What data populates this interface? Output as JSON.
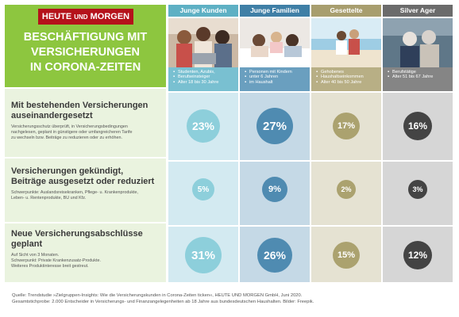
{
  "header": {
    "logo_main": "HEUTE",
    "logo_und": "UND",
    "logo_end": "MORGEN",
    "title_line1": "BESCHÄFTIGUNG MIT",
    "title_line2": "VERSICHERUNGEN",
    "title_line3": "IN CORONA-ZEITEN"
  },
  "rows": [
    {
      "title_line1": "Mit bestehenden Versicherungen",
      "title_line2": "auseinandergesetzt",
      "desc_line1": "Versicherungsschutz überprüft, in Versicherungsbedingungen",
      "desc_line2": "nachgelesen, geplant in günstigere oder umfangreicheren Tarife",
      "desc_line3": "zu wechseln bzw. Beiträge zu reduzieren oder zu erhöhen."
    },
    {
      "title_line1": "Versicherungen gekündigt,",
      "title_line2": "Beiträge ausgesetzt oder reduziert",
      "desc_line1": "Schwerpunkte: Auslandsreisekranken, Pflege- u. Krankenprodukte,",
      "desc_line2": "Leben- u. Rentenprodukte, BU und Kfz."
    },
    {
      "title_line1": "Neue Versicherungsabschlüsse",
      "title_line2": "geplant",
      "desc_line1": "Auf Sicht von 3 Monaten.",
      "desc_line2": "Schwerpunkt: Private Krankenzusatz-Produkte.",
      "desc_line3": "Weiteres Produktinteresse breit gestreut."
    }
  ],
  "groups": [
    {
      "name": "Junge Kunden",
      "head_color": "#5eb0c4",
      "info_color": "#79c0d1",
      "body_color": "#d3eaf1",
      "circle_color": "#8dcfdb",
      "info": [
        "Studenten, Azubis,",
        "Berufseinsteiger",
        "Alter 18 bis 30 Jahre"
      ],
      "values": [
        "23%",
        "5%",
        "31%"
      ]
    },
    {
      "name": "Junge Familien",
      "head_color": "#3f7fa6",
      "info_color": "#6a9fbf",
      "body_color": "#c5d9e6",
      "circle_color": "#4f8bb1",
      "info": [
        "Personen mit Kindern",
        "unter 6 Jahren",
        "im Haushalt"
      ],
      "values": [
        "27%",
        "9%",
        "26%"
      ]
    },
    {
      "name": "Gesettelte",
      "head_color": "#a89e6e",
      "info_color": "#b8af85",
      "body_color": "#e5e2d2",
      "circle_color": "#aba26f",
      "info": [
        "Gehobenes",
        "Haushaltseinkommen",
        "Alter 40 bis 50 Jahre"
      ],
      "values": [
        "17%",
        "2%",
        "15%"
      ]
    },
    {
      "name": "Silver Ager",
      "head_color": "#6b6b6b",
      "info_color": "#858585",
      "body_color": "#d6d6d6",
      "circle_color": "#444444",
      "info": [
        "Berufstätige",
        "Alter 51 bis 67 Jahre"
      ],
      "values": [
        "16%",
        "3%",
        "12%"
      ]
    }
  ],
  "photos": [
    "photo-young-people-laptop",
    "photo-family-on-bed",
    "photo-couple-beach",
    "photo-senior-couple"
  ],
  "source": {
    "line1": "Quelle: Trendstudie »Zielgruppen-Insights: Wie die Versicherungskunden in Corona-Zeiten ticken«, HEUTE UND MORGEN GmbH, Juni 2020.",
    "line2": "Gesamtstichprobe: 2.000 Entscheider in Versicherungs- und Finanzangelegenheiten ab 18 Jahre aus bundesdeutschen Haushalten. Bilder: Freepik."
  },
  "colors": {
    "left_head": "#8dc63f",
    "left_rows": "#eaf3df",
    "logo": "#b5121b"
  }
}
